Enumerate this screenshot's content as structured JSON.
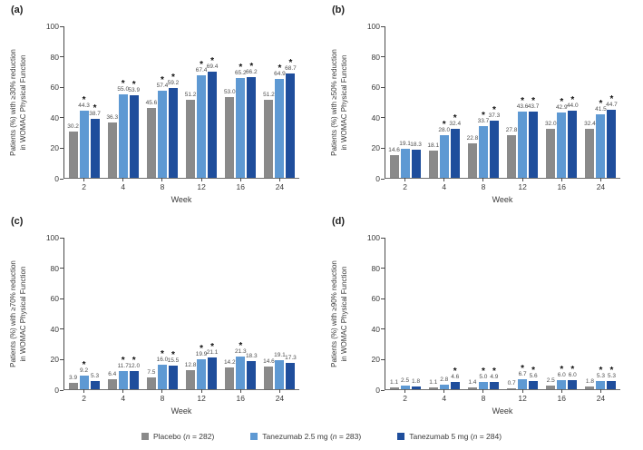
{
  "figure": {
    "xlabel": "Week",
    "categories": [
      "2",
      "4",
      "8",
      "12",
      "16",
      "24"
    ],
    "yticks": [
      0,
      20,
      40,
      60,
      80,
      100
    ],
    "ylim": [
      0,
      100
    ],
    "sig_marker": "*",
    "colors": {
      "placebo": "#8A8A8A",
      "tanezumab_2_5mg": "#5E99D3",
      "tanezumab_5mg": "#1F4E9C"
    }
  },
  "legend": {
    "items": [
      {
        "label": "Placebo (n = 282)",
        "color": "#8A8A8A"
      },
      {
        "label": "Tanezumab 2.5 mg (n = 283)",
        "color": "#5E99D3"
      },
      {
        "label": "Tanezumab 5 mg (n = 284)",
        "color": "#1F4E9C"
      }
    ]
  },
  "chart_data": [
    {
      "type": "bar",
      "panel_label": "(a)",
      "ylabel_lines": [
        "Patients (%) with ≥30% reduction",
        "in WOMAC Physical Function"
      ],
      "xlabel": "Week",
      "categories": [
        "2",
        "4",
        "8",
        "12",
        "16",
        "24"
      ],
      "ylim": [
        0,
        100
      ],
      "yticks": [
        0,
        20,
        40,
        60,
        80,
        100
      ],
      "series": [
        {
          "name": "Placebo",
          "color": "#8A8A8A",
          "values": [
            30.2,
            36.3,
            45.6,
            51.2,
            53.0,
            51.2
          ],
          "sig": [
            false,
            false,
            false,
            false,
            false,
            false
          ]
        },
        {
          "name": "Tanezumab 2.5 mg",
          "color": "#5E99D3",
          "values": [
            44.3,
            55.0,
            57.4,
            67.4,
            65.2,
            64.9
          ],
          "sig": [
            true,
            true,
            true,
            true,
            true,
            true
          ]
        },
        {
          "name": "Tanezumab 5 mg",
          "color": "#1F4E9C",
          "values": [
            38.7,
            53.9,
            59.2,
            69.4,
            66.2,
            68.7
          ],
          "sig": [
            true,
            true,
            true,
            true,
            true,
            true
          ]
        }
      ]
    },
    {
      "type": "bar",
      "panel_label": "(b)",
      "ylabel_lines": [
        "Patients (%) with ≥50% reduction",
        "in WOMAC Physical Function"
      ],
      "xlabel": "Week",
      "categories": [
        "2",
        "4",
        "8",
        "12",
        "16",
        "24"
      ],
      "ylim": [
        0,
        100
      ],
      "yticks": [
        0,
        20,
        40,
        60,
        80,
        100
      ],
      "series": [
        {
          "name": "Placebo",
          "color": "#8A8A8A",
          "values": [
            14.6,
            18.1,
            22.8,
            27.8,
            32.0,
            32.4
          ],
          "sig": [
            false,
            false,
            false,
            false,
            false,
            false
          ]
        },
        {
          "name": "Tanezumab 2.5 mg",
          "color": "#5E99D3",
          "values": [
            19.1,
            28.0,
            33.7,
            43.6,
            42.9,
            41.5
          ],
          "sig": [
            false,
            true,
            true,
            true,
            true,
            true
          ]
        },
        {
          "name": "Tanezumab 5 mg",
          "color": "#1F4E9C",
          "values": [
            18.3,
            32.4,
            37.3,
            43.7,
            44.0,
            44.7
          ],
          "sig": [
            false,
            true,
            true,
            true,
            true,
            true
          ]
        }
      ]
    },
    {
      "type": "bar",
      "panel_label": "(c)",
      "ylabel_lines": [
        "Patients (%) with ≥70% reduction",
        "in WOMAC Physical Function"
      ],
      "xlabel": "Week",
      "categories": [
        "2",
        "4",
        "8",
        "12",
        "16",
        "24"
      ],
      "ylim": [
        0,
        100
      ],
      "yticks": [
        0,
        20,
        40,
        60,
        80,
        100
      ],
      "series": [
        {
          "name": "Placebo",
          "color": "#8A8A8A",
          "values": [
            3.9,
            6.4,
            7.5,
            12.8,
            14.2,
            14.6
          ],
          "sig": [
            false,
            false,
            false,
            false,
            false,
            false
          ]
        },
        {
          "name": "Tanezumab 2.5 mg",
          "color": "#5E99D3",
          "values": [
            9.2,
            11.7,
            16.0,
            19.9,
            21.3,
            19.1
          ],
          "sig": [
            true,
            true,
            true,
            true,
            true,
            false
          ]
        },
        {
          "name": "Tanezumab 5 mg",
          "color": "#1F4E9C",
          "values": [
            5.3,
            12.0,
            15.5,
            21.1,
            18.3,
            17.3
          ],
          "sig": [
            false,
            true,
            true,
            true,
            false,
            false
          ]
        }
      ]
    },
    {
      "type": "bar",
      "panel_label": "(d)",
      "ylabel_lines": [
        "Patients (%) with ≥90% reduction",
        "in WOMAC Physical Function"
      ],
      "xlabel": "Week",
      "categories": [
        "2",
        "4",
        "8",
        "12",
        "16",
        "24"
      ],
      "ylim": [
        0,
        100
      ],
      "yticks": [
        0,
        20,
        40,
        60,
        80,
        100
      ],
      "series": [
        {
          "name": "Placebo",
          "color": "#8A8A8A",
          "values": [
            1.1,
            1.1,
            1.4,
            0.7,
            2.5,
            1.8
          ],
          "sig": [
            false,
            false,
            false,
            false,
            false,
            false
          ]
        },
        {
          "name": "Tanezumab 2.5 mg",
          "color": "#5E99D3",
          "values": [
            2.5,
            2.8,
            5.0,
            6.7,
            6.0,
            5.3
          ],
          "sig": [
            false,
            false,
            true,
            true,
            true,
            true
          ]
        },
        {
          "name": "Tanezumab 5 mg",
          "color": "#1F4E9C",
          "values": [
            1.8,
            4.6,
            4.9,
            5.6,
            6.0,
            5.3
          ],
          "sig": [
            false,
            true,
            true,
            true,
            true,
            true
          ]
        }
      ]
    }
  ]
}
